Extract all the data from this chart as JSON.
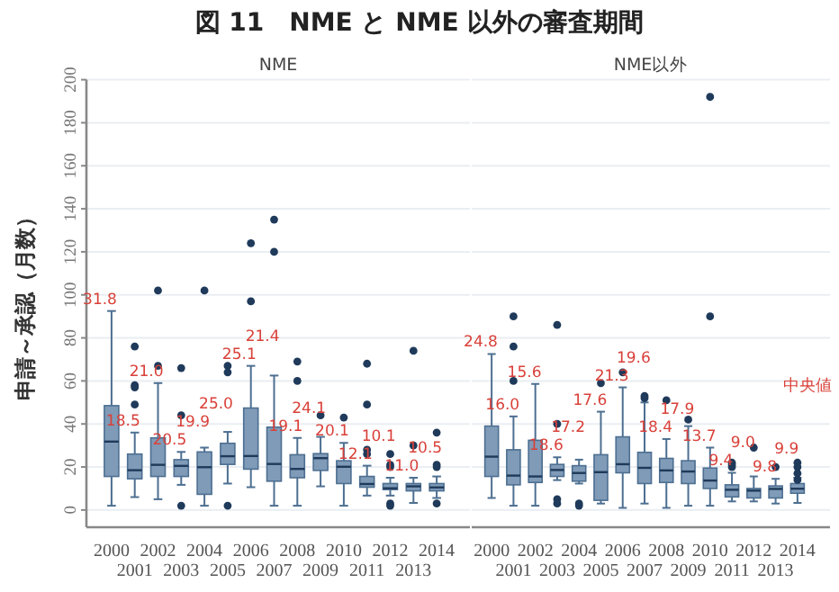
{
  "chart_data": [
    {
      "type": "box",
      "title": "図 11　NME と NME 以外の審査期間",
      "subtitle": "NME",
      "ylabel": "申請～承認（月数）",
      "categories": [
        "2000",
        "2001",
        "2002",
        "2003",
        "2004",
        "2005",
        "2006",
        "2007",
        "2008",
        "2009",
        "2010",
        "2011",
        "2012",
        "2013",
        "2014"
      ],
      "series": [
        {
          "color": "#7f9bb8",
          "boxes": [
            {
              "low": 2,
              "q1": 15.6,
              "median": 31.8,
              "q3": 48.5,
              "high": 92.5
            },
            {
              "low": 6,
              "q1": 14.5,
              "median": 18.5,
              "q3": 26,
              "high": 36,
              "outliers": [
                76,
                58,
                57,
                49
              ]
            },
            {
              "low": 5,
              "q1": 15.6,
              "median": 21.0,
              "q3": 33.5,
              "high": 59,
              "outliers": [
                102,
                67
              ]
            },
            {
              "low": 11.7,
              "q1": 15.6,
              "median": 20.5,
              "q3": 23.4,
              "high": 27,
              "outliers": [
                66,
                44,
                2
              ]
            },
            {
              "low": 2,
              "q1": 7.3,
              "median": 19.9,
              "q3": 27,
              "high": 29,
              "outliers": [
                102
              ]
            },
            {
              "low": 12.3,
              "q1": 21.2,
              "median": 25.0,
              "q3": 31,
              "high": 36.3,
              "outliers": [
                67,
                64,
                2
              ]
            },
            {
              "low": 10.6,
              "q1": 19,
              "median": 25.1,
              "q3": 47.4,
              "high": 67,
              "outliers": [
                124,
                97
              ]
            },
            {
              "low": 2,
              "q1": 13.4,
              "median": 21.4,
              "q3": 38.5,
              "high": 62.5,
              "outliers": [
                135,
                120
              ]
            },
            {
              "low": 2,
              "q1": 15,
              "median": 19.1,
              "q3": 25.7,
              "high": 33.5,
              "outliers": [
                69,
                60
              ]
            },
            {
              "low": 11,
              "q1": 18.4,
              "median": 24.1,
              "q3": 26.2,
              "high": 34,
              "outliers": [
                44
              ]
            },
            {
              "low": 2,
              "q1": 12.3,
              "median": 20.1,
              "q3": 22.9,
              "high": 31.2,
              "outliers": [
                43
              ]
            },
            {
              "low": 6.7,
              "q1": 10.6,
              "median": 12.1,
              "q3": 15.6,
              "high": 20.6,
              "outliers": [
                68,
                49,
                28,
                26
              ]
            },
            {
              "low": 6.7,
              "q1": 9.5,
              "median": 10.1,
              "q3": 12.3,
              "high": 15,
              "outliers": [
                26,
                21,
                20,
                3,
                2
              ]
            },
            {
              "low": 3.3,
              "q1": 8.9,
              "median": 11.0,
              "q3": 12.3,
              "high": 15,
              "outliers": [
                74,
                30
              ]
            },
            {
              "low": 5.6,
              "q1": 8.9,
              "median": 10.5,
              "q3": 12.3,
              "high": 15.6,
              "outliers": [
                36,
                21,
                20,
                3
              ]
            }
          ]
        }
      ],
      "ylim": [
        -8,
        200
      ],
      "yticks": [
        0,
        20,
        40,
        60,
        80,
        100,
        120,
        140,
        160,
        180,
        200
      ],
      "grid": "y",
      "annotations": [
        "31.8",
        "18.5",
        "21.0",
        "20.5",
        "19.9",
        "25.0",
        "25.1",
        "21.4",
        "19.1",
        "24.1",
        "20.1",
        "12.1",
        "10.1",
        "11.0",
        "10.5"
      ]
    },
    {
      "type": "box",
      "subtitle": "NME以外",
      "categories": [
        "2000",
        "2001",
        "2002",
        "2003",
        "2004",
        "2005",
        "2006",
        "2007",
        "2008",
        "2009",
        "2010",
        "2011",
        "2012",
        "2013",
        "2014"
      ],
      "series": [
        {
          "color": "#7f9bb8",
          "boxes": [
            {
              "low": 5.6,
              "q1": 15.6,
              "median": 24.8,
              "q3": 39,
              "high": 72.5
            },
            {
              "low": 2,
              "q1": 11.7,
              "median": 16.0,
              "q3": 28,
              "high": 43.5,
              "outliers": [
                90,
                76,
                60
              ]
            },
            {
              "low": 2,
              "q1": 12.8,
              "median": 15.6,
              "q3": 32.4,
              "high": 58.6
            },
            {
              "low": 13.9,
              "q1": 15.6,
              "median": 18.6,
              "q3": 21.2,
              "high": 24.5,
              "outliers": [
                86,
                40,
                5,
                3
              ]
            },
            {
              "low": 12.3,
              "q1": 13.4,
              "median": 17.2,
              "q3": 20.6,
              "high": 23.4,
              "outliers": [
                3,
                2
              ]
            },
            {
              "low": 3,
              "q1": 4.5,
              "median": 17.6,
              "q3": 25.7,
              "high": 45.7,
              "outliers": [
                59
              ]
            },
            {
              "low": 1,
              "q1": 17.3,
              "median": 21.3,
              "q3": 34,
              "high": 57,
              "outliers": [
                64
              ]
            },
            {
              "low": 3,
              "q1": 12.3,
              "median": 19.6,
              "q3": 26.8,
              "high": 50,
              "outliers": [
                53,
                52
              ]
            },
            {
              "low": 1,
              "q1": 12.8,
              "median": 18.4,
              "q3": 24,
              "high": 33,
              "outliers": [
                51
              ]
            },
            {
              "low": 2,
              "q1": 12.3,
              "median": 17.9,
              "q3": 22.9,
              "high": 39,
              "outliers": [
                42
              ]
            },
            {
              "low": 2,
              "q1": 10,
              "median": 13.7,
              "q3": 19.5,
              "high": 29,
              "outliers": [
                192,
                90
              ]
            },
            {
              "low": 4,
              "q1": 6.1,
              "median": 9.4,
              "q3": 11.7,
              "high": 17.3,
              "outliers": [
                22,
                21,
                20
              ]
            },
            {
              "low": 4,
              "q1": 5.6,
              "median": 9.0,
              "q3": 10,
              "high": 15.6,
              "outliers": [
                29
              ]
            },
            {
              "low": 3,
              "q1": 5.6,
              "median": 9.8,
              "q3": 11.2,
              "high": 14.5,
              "outliers": [
                20
              ]
            },
            {
              "low": 3.3,
              "q1": 7.8,
              "median": 9.9,
              "q3": 12.3,
              "high": 15,
              "outliers": [
                22,
                20,
                17,
                14
              ]
            }
          ]
        }
      ],
      "ylim": [
        -8,
        200
      ],
      "yticks": [
        0,
        20,
        40,
        60,
        80,
        100,
        120,
        140,
        160,
        180,
        200
      ],
      "grid": "y",
      "tick_labels": "x",
      "annotations": [
        "24.8",
        "16.0",
        "15.6",
        "18.6",
        "17.2",
        "17.6",
        "21.3",
        "19.6",
        "18.4",
        "17.9",
        "13.7",
        "9.4",
        "9.0",
        "9.8",
        "9.9",
        "中央値"
      ]
    }
  ]
}
